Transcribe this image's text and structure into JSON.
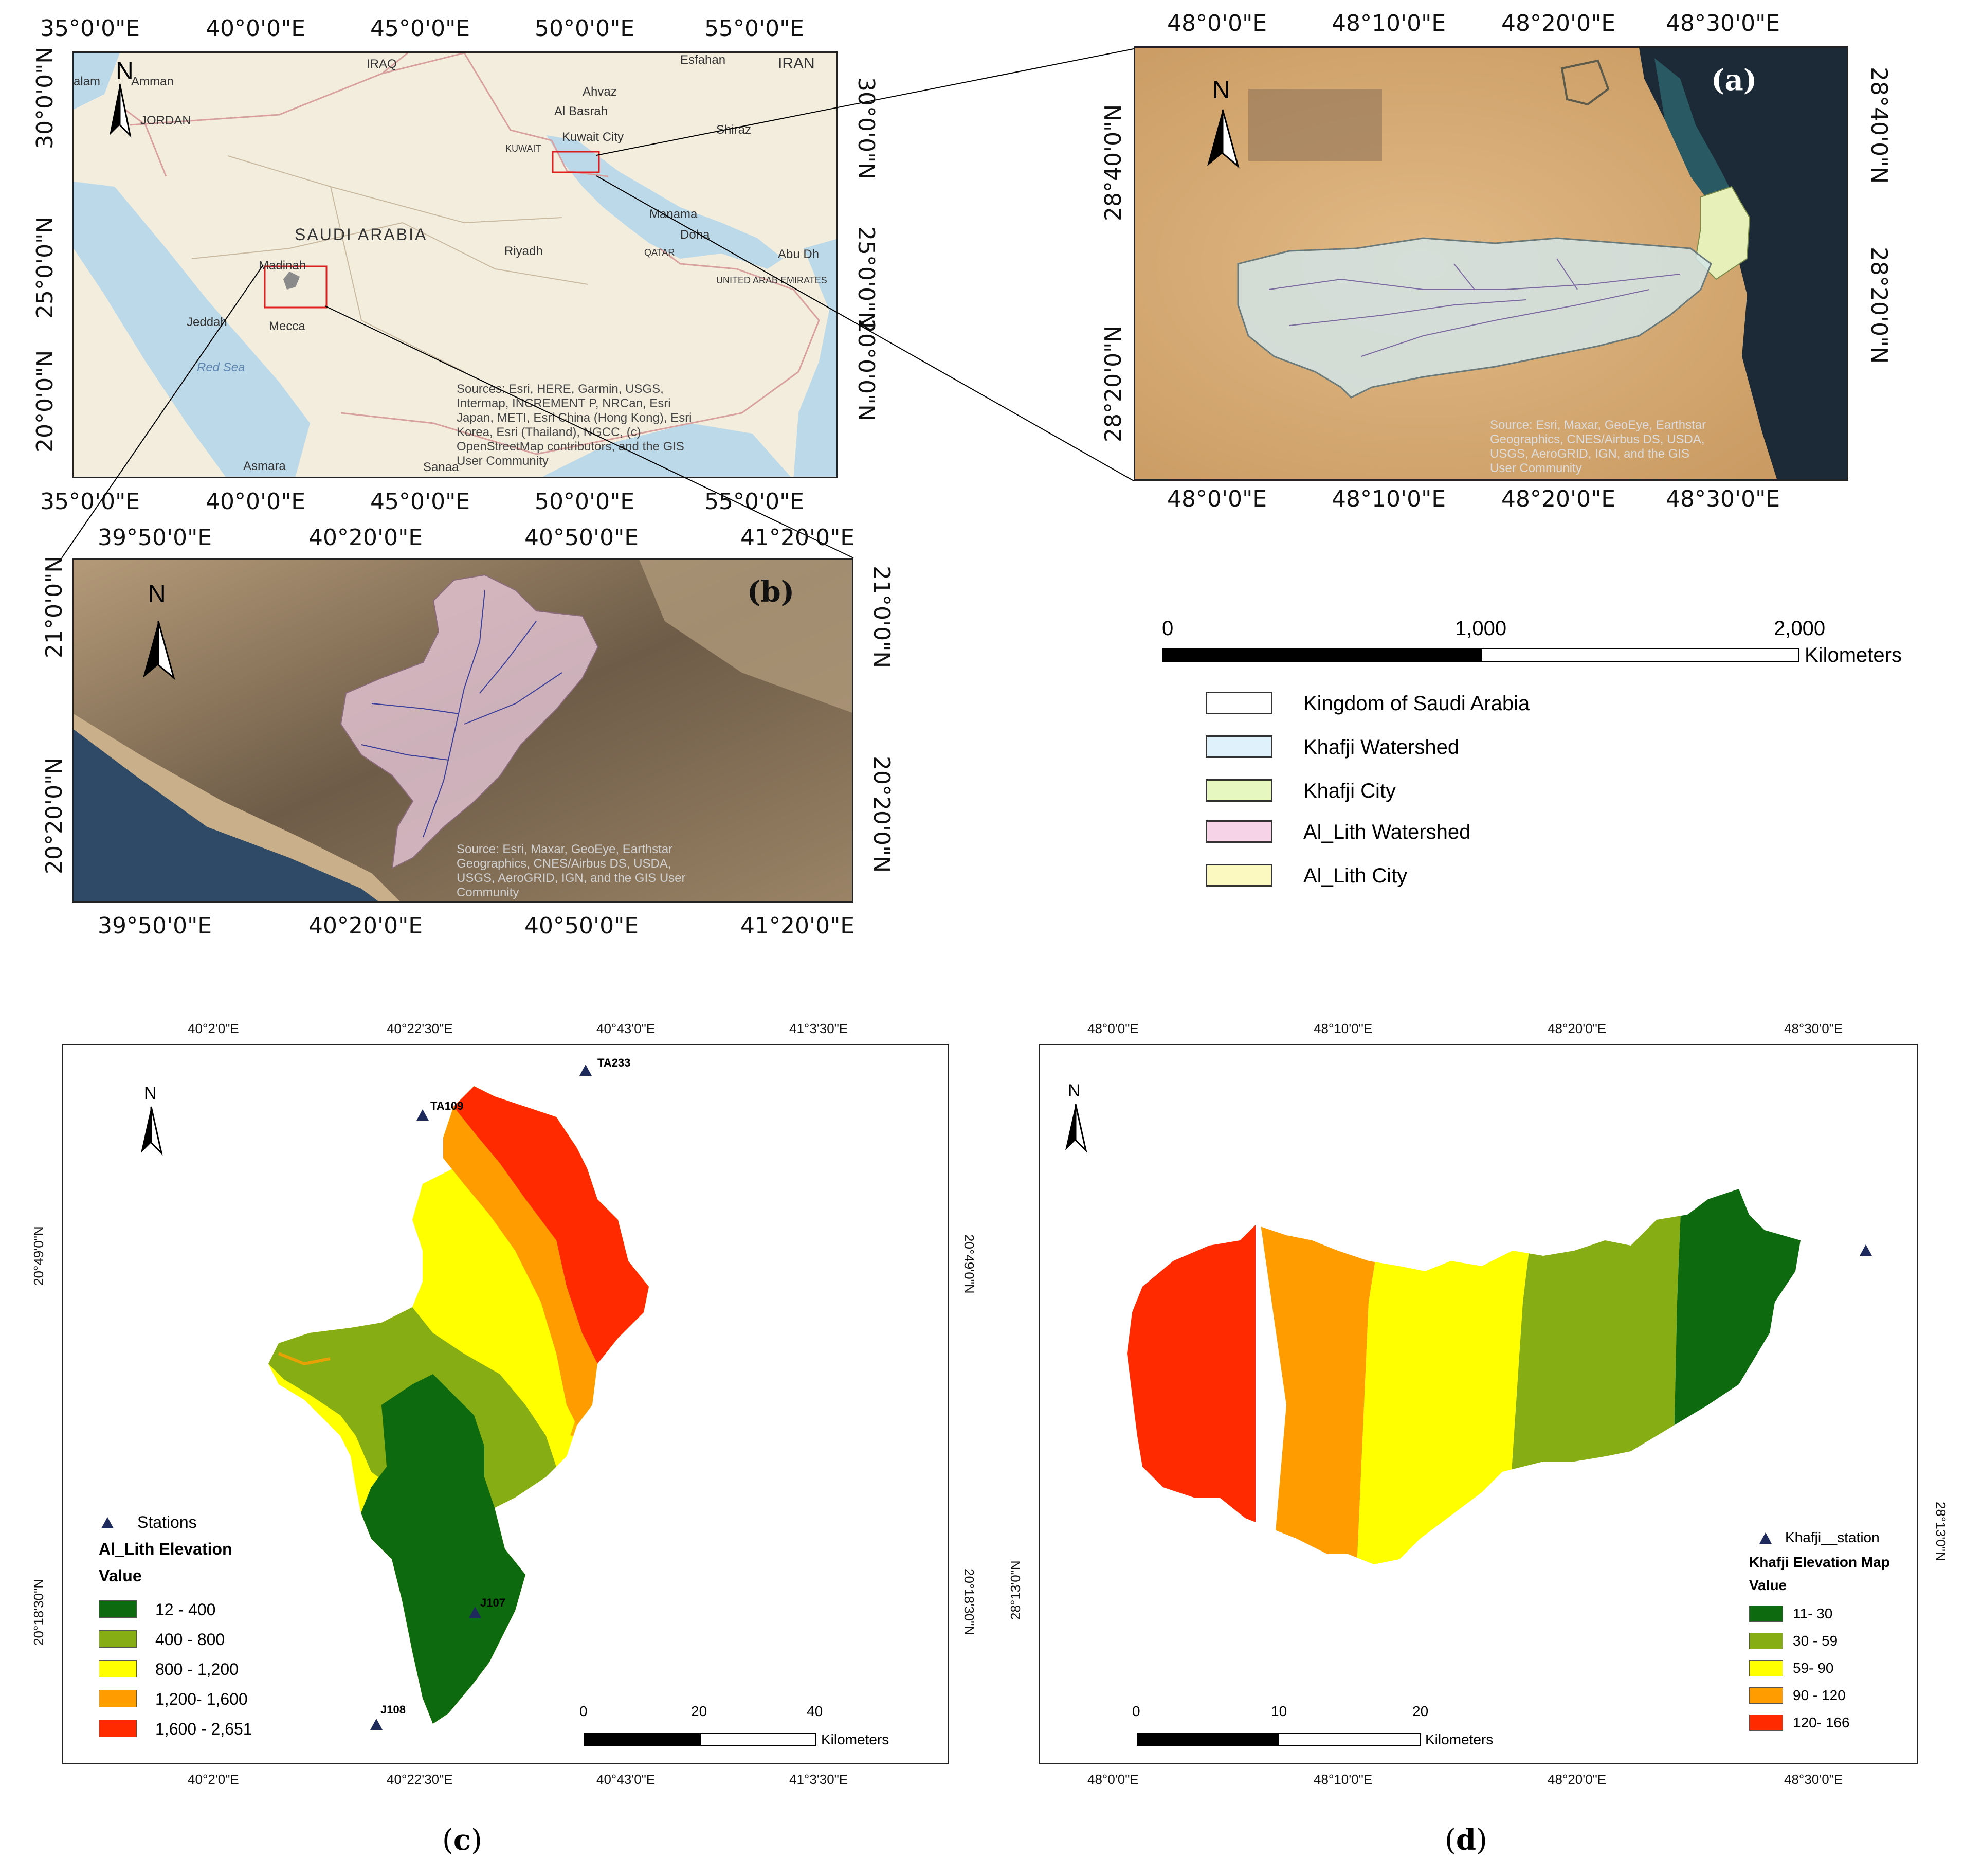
{
  "overview": {
    "top_ticks": [
      "35°0'0\"E",
      "40°0'0\"E",
      "45°0'0\"E",
      "50°0'0\"E",
      "55°0'0\"E"
    ],
    "bottom_ticks": [
      "35°0'0\"E",
      "40°0'0\"E",
      "45°0'0\"E",
      "50°0'0\"E",
      "55°0'0\"E"
    ],
    "left_ticks": [
      "30°0'0\"N",
      "25°0'0\"N",
      "20°0'0\"N"
    ],
    "right_ticks": [
      "30°0'0\"N",
      "25°0'0\"N",
      "20°0'0\"N"
    ],
    "places": [
      "Amman",
      "JORDAN",
      "IRAQ",
      "Esfahan",
      "IRAN",
      "Ahvaz",
      "Al Basrah",
      "Kuwait City",
      "KUWAIT",
      "Shiraz",
      "SAUDI ARABIA",
      "Manama",
      "Doha",
      "QATAR",
      "Abu Dh",
      "UNITED ARAB EMIRATES",
      "Riyadh",
      "Madinah",
      "Jeddah",
      "Mecca",
      "Red Sea",
      "Asmara",
      "Sanaa",
      "alam"
    ],
    "north": "N",
    "source": "Sources: Esri, HERE, Garmin, USGS,\nIntermap, INCREMENT P, NRCan, Esri\nJapan, METI, Esri China (Hong Kong), Esri\nKorea, Esri (Thailand), NGCC, (c)\nOpenStreetMap contributors, and the GIS\nUser Community"
  },
  "panel_a": {
    "tag": "(a)",
    "top_ticks": [
      "48°0'0\"E",
      "48°10'0\"E",
      "48°20'0\"E",
      "48°30'0\"E"
    ],
    "bottom_ticks": [
      "48°0'0\"E",
      "48°10'0\"E",
      "48°20'0\"E",
      "48°30'0\"E"
    ],
    "left_ticks": [
      "28°40'0\"N",
      "28°20'0\"N"
    ],
    "right_ticks": [
      "28°40'0\"N",
      "28°20'0\"N"
    ],
    "north": "N",
    "source": "Source: Esri, Maxar, GeoEye, Earthstar\nGeographics, CNES/Airbus DS, USDA,\nUSGS, AeroGRID, IGN, and the GIS\nUser Community"
  },
  "panel_b": {
    "tag": "(b)",
    "top_ticks": [
      "39°50'0\"E",
      "40°20'0\"E",
      "40°50'0\"E",
      "41°20'0\"E"
    ],
    "bottom_ticks": [
      "39°50'0\"E",
      "40°20'0\"E",
      "40°50'0\"E",
      "41°20'0\"E"
    ],
    "left_ticks": [
      "21°0'0\"N",
      "20°20'0\"N"
    ],
    "right_ticks": [
      "21°0'0\"N",
      "20°20'0\"N"
    ],
    "north": "N",
    "source": "Source: Esri, Maxar, GeoEye, Earthstar\nGeographics, CNES/Airbus DS, USDA,\nUSGS, AeroGRID, IGN, and the GIS User\nCommunity"
  },
  "scale_main": {
    "labels": [
      "0",
      "1,000",
      "2,000"
    ],
    "unit": "Kilometers"
  },
  "legend_main": [
    {
      "label": "Kingdom of Saudi Arabia",
      "color": "#ffffff"
    },
    {
      "label": "Khafji Watershed",
      "color": "#dff1fb"
    },
    {
      "label": "Khafji City",
      "color": "#e6f7bf"
    },
    {
      "label": "Al_Lith Watershed",
      "color": "#f6d3e6"
    },
    {
      "label": "Al_Lith City",
      "color": "#fbf8c0"
    }
  ],
  "panel_c": {
    "caption": "c",
    "top_ticks": [
      "40°2'0\"E",
      "40°22'30\"E",
      "40°43'0\"E",
      "41°3'30\"E"
    ],
    "bottom_ticks": [
      "40°2'0\"E",
      "40°22'30\"E",
      "40°43'0\"E",
      "41°3'30\"E"
    ],
    "left_ticks": [
      "20°49'0\"N",
      "20°18'30\"N"
    ],
    "right_ticks": [
      "20°49'0\"N",
      "20°18'30\"N"
    ],
    "north": "N",
    "stations": [
      "TA233",
      "TA109",
      "J107",
      "J108"
    ],
    "legend": {
      "stations_label": "Stations",
      "title": "Al_Lith Elevation",
      "value_label": "Value",
      "classes": [
        {
          "label": "12 - 400",
          "color": "#0d6a0f"
        },
        {
          "label": "400 - 800",
          "color": "#86ad14"
        },
        {
          "label": "800 - 1,200",
          "color": "#ffff00"
        },
        {
          "label": "1,200- 1,600",
          "color": "#ff9d00"
        },
        {
          "label": "1,600 - 2,651",
          "color": "#ff2a00"
        }
      ]
    },
    "scale": {
      "labels": [
        "0",
        "20",
        "40"
      ],
      "unit": "Kilometers"
    }
  },
  "panel_d": {
    "caption": "d",
    "top_ticks": [
      "48°0'0\"E",
      "48°10'0\"E",
      "48°20'0\"E",
      "48°30'0\"E"
    ],
    "bottom_ticks": [
      "48°0'0\"E",
      "48°10'0\"E",
      "48°20'0\"E",
      "48°30'0\"E"
    ],
    "left_ticks": [
      "28°13'0\"N"
    ],
    "right_ticks": [
      "28°13'0\"N"
    ],
    "north": "N",
    "legend": {
      "stations_label": "Khafji__station",
      "title": "Khafji Elevation Map",
      "value_label": "Value",
      "classes": [
        {
          "label": "11- 30",
          "color": "#0d6a0f"
        },
        {
          "label": "30 - 59",
          "color": "#86ad14"
        },
        {
          "label": "59- 90",
          "color": "#ffff00"
        },
        {
          "label": "90 - 120",
          "color": "#ff9d00"
        },
        {
          "label": "120- 166",
          "color": "#ff2a00"
        }
      ]
    },
    "scale": {
      "labels": [
        "0",
        "10",
        "20"
      ],
      "unit": "Kilometers"
    }
  }
}
